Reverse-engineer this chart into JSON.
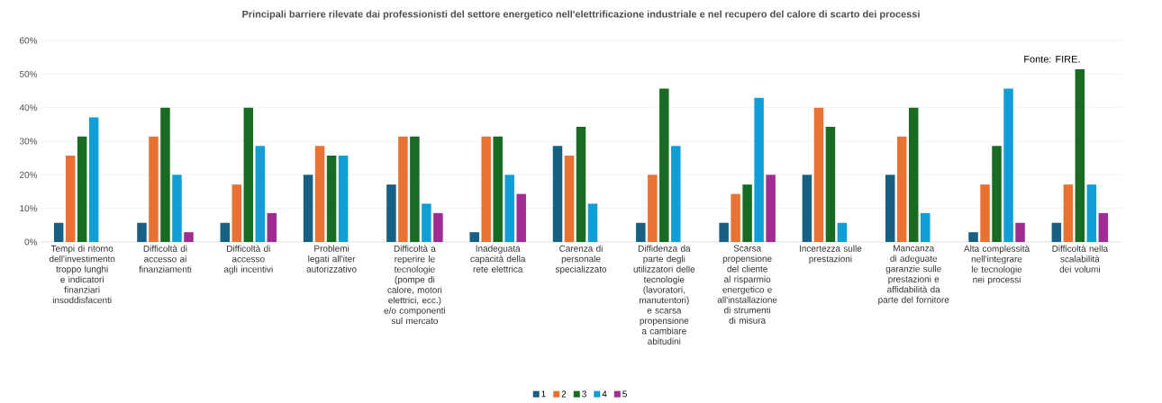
{
  "chart_data": {
    "type": "bar",
    "title": "Principali barriere rilevate dai professionisti del settore energetico nell'elettrificazione industriale e nel recupero del calore di scarto dei processi",
    "categories": [
      "Tempi di ritorno dell'investimento troppo lunghi e indicatori finanziari insoddisfacenti",
      "Difficoltà di accesso ai finanziamenti",
      "Difficoltà di accesso agli incentivi",
      "Problemi legati all'iter autorizzativo",
      "Difficoltà a reperire le tecnologie (pompe di calore, motori elettrici, ecc.) e/o componenti sul mercato",
      "Inadeguata capacità della rete elettrica",
      "Carenza di personale specializzato",
      "Diffidenza da parte degli utilizzatori delle tecnologie (lavoratori, manutentori) e scarsa propensione a cambiare abitudini",
      "Scarsa propensione del cliente al risparmio energetico e all'installazione di strumenti di misura",
      "Incertezza sulle prestazioni",
      "Mancanza di adeguate garanzie sulle prestazioni e affidabilità da parte del fornitore",
      "Alta complessità nell'integrare le tecnologie nei processi",
      "Difficoltà nella scalabilità dei volumi"
    ],
    "series": [
      {
        "name": "1",
        "color": "#175f83",
        "values": [
          5.7,
          5.7,
          5.7,
          20,
          17.1,
          2.9,
          28.6,
          5.7,
          5.7,
          20,
          20,
          2.9,
          5.7
        ]
      },
      {
        "name": "2",
        "color": "#e97132",
        "values": [
          25.7,
          31.4,
          17.1,
          28.6,
          31.4,
          31.4,
          25.7,
          20,
          14.3,
          40,
          31.4,
          17.1,
          17.1
        ]
      },
      {
        "name": "3",
        "color": "#196b24",
        "values": [
          31.4,
          40,
          40,
          25.7,
          31.4,
          31.4,
          34.3,
          45.7,
          17.1,
          34.3,
          40,
          28.6,
          51.4
        ]
      },
      {
        "name": "4",
        "color": "#0f9ed5",
        "values": [
          37.1,
          20,
          28.6,
          25.7,
          11.4,
          20,
          11.4,
          28.6,
          42.9,
          5.7,
          8.6,
          45.7,
          17.1
        ]
      },
      {
        "name": "5",
        "color": "#a02b93",
        "values": [
          0,
          2.9,
          8.6,
          0,
          8.6,
          14.3,
          0,
          0,
          20,
          0,
          0,
          5.7,
          8.6
        ]
      }
    ],
    "ylim": [
      0,
      60
    ],
    "yticks": [
      {
        "value": 0,
        "label": "0%"
      },
      {
        "value": 10,
        "label": "10%"
      },
      {
        "value": 20,
        "label": "20%"
      },
      {
        "value": 30,
        "label": "30%"
      },
      {
        "value": 40,
        "label": "40%"
      },
      {
        "value": 50,
        "label": "50%"
      },
      {
        "value": 60,
        "label": "60%"
      }
    ],
    "grid": "y",
    "legend": "bottom",
    "annotations": [
      "Fonte: FIRE."
    ]
  }
}
